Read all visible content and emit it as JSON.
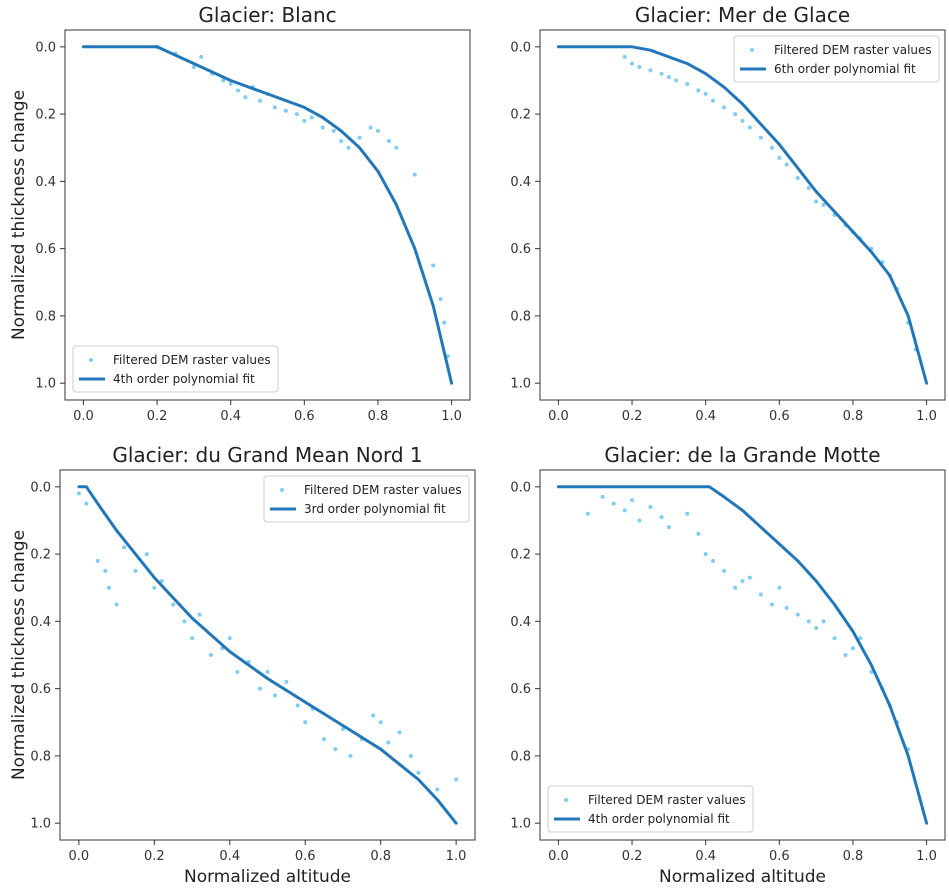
{
  "figure": {
    "ylabel": "Normalized thickness change",
    "xlabel": "Normalized altitude"
  },
  "colors": {
    "scatter": "#7fcdf2",
    "fit": "#2177b8",
    "frame": "#333333"
  },
  "legend": {
    "scatter_label": "Filtered DEM raster values"
  },
  "chart_data": [
    {
      "type": "scatter",
      "title": "Glacier: Blanc",
      "xlim": [
        -0.05,
        1.05
      ],
      "ylim": [
        1.05,
        -0.05
      ],
      "y_inverted": true,
      "xticks": [
        0.0,
        0.2,
        0.4,
        0.6,
        0.8,
        1.0
      ],
      "yticks": [
        0.0,
        0.2,
        0.4,
        0.6,
        0.8,
        1.0
      ],
      "legend_location": "lower-left",
      "fit": {
        "name": "4th order polynomial fit",
        "x": [
          0.0,
          0.2,
          0.3,
          0.4,
          0.5,
          0.6,
          0.65,
          0.7,
          0.75,
          0.8,
          0.85,
          0.9,
          0.95,
          1.0
        ],
        "y": [
          0.0,
          0.0,
          0.05,
          0.1,
          0.14,
          0.18,
          0.21,
          0.25,
          0.3,
          0.37,
          0.47,
          0.6,
          0.77,
          1.0
        ]
      },
      "scatter": [
        [
          0.2,
          0.0
        ],
        [
          0.25,
          0.02
        ],
        [
          0.3,
          0.06
        ],
        [
          0.32,
          0.03
        ],
        [
          0.35,
          0.08
        ],
        [
          0.38,
          0.1
        ],
        [
          0.4,
          0.11
        ],
        [
          0.42,
          0.13
        ],
        [
          0.44,
          0.15
        ],
        [
          0.46,
          0.12
        ],
        [
          0.48,
          0.16
        ],
        [
          0.5,
          0.14
        ],
        [
          0.52,
          0.18
        ],
        [
          0.55,
          0.19
        ],
        [
          0.58,
          0.2
        ],
        [
          0.6,
          0.22
        ],
        [
          0.62,
          0.21
        ],
        [
          0.65,
          0.24
        ],
        [
          0.68,
          0.25
        ],
        [
          0.7,
          0.28
        ],
        [
          0.72,
          0.3
        ],
        [
          0.75,
          0.27
        ],
        [
          0.78,
          0.24
        ],
        [
          0.8,
          0.25
        ],
        [
          0.83,
          0.28
        ],
        [
          0.85,
          0.3
        ],
        [
          0.9,
          0.38
        ],
        [
          0.95,
          0.65
        ],
        [
          0.97,
          0.75
        ],
        [
          0.98,
          0.82
        ],
        [
          0.99,
          0.92
        ]
      ]
    },
    {
      "type": "scatter",
      "title": "Glacier: Mer de Glace",
      "xlim": [
        -0.05,
        1.05
      ],
      "ylim": [
        1.05,
        -0.05
      ],
      "y_inverted": true,
      "xticks": [
        0.0,
        0.2,
        0.4,
        0.6,
        0.8,
        1.0
      ],
      "yticks": [
        0.0,
        0.2,
        0.4,
        0.6,
        0.8,
        1.0
      ],
      "legend_location": "upper-right",
      "fit": {
        "name": "6th order polynomial fit",
        "x": [
          0.0,
          0.2,
          0.25,
          0.3,
          0.35,
          0.4,
          0.45,
          0.5,
          0.55,
          0.6,
          0.65,
          0.7,
          0.75,
          0.8,
          0.85,
          0.9,
          0.95,
          1.0
        ],
        "y": [
          0.0,
          0.0,
          0.01,
          0.03,
          0.05,
          0.08,
          0.12,
          0.17,
          0.23,
          0.29,
          0.36,
          0.43,
          0.49,
          0.55,
          0.61,
          0.68,
          0.8,
          1.0
        ]
      },
      "scatter": [
        [
          0.18,
          0.03
        ],
        [
          0.2,
          0.05
        ],
        [
          0.22,
          0.06
        ],
        [
          0.25,
          0.07
        ],
        [
          0.28,
          0.08
        ],
        [
          0.3,
          0.09
        ],
        [
          0.32,
          0.1
        ],
        [
          0.35,
          0.11
        ],
        [
          0.38,
          0.13
        ],
        [
          0.4,
          0.14
        ],
        [
          0.42,
          0.16
        ],
        [
          0.45,
          0.18
        ],
        [
          0.48,
          0.2
        ],
        [
          0.5,
          0.22
        ],
        [
          0.52,
          0.24
        ],
        [
          0.55,
          0.27
        ],
        [
          0.58,
          0.3
        ],
        [
          0.6,
          0.33
        ],
        [
          0.62,
          0.35
        ],
        [
          0.65,
          0.39
        ],
        [
          0.68,
          0.42
        ],
        [
          0.7,
          0.46
        ],
        [
          0.72,
          0.47
        ],
        [
          0.75,
          0.5
        ],
        [
          0.78,
          0.53
        ],
        [
          0.8,
          0.55
        ],
        [
          0.82,
          0.57
        ],
        [
          0.85,
          0.6
        ],
        [
          0.88,
          0.64
        ],
        [
          0.9,
          0.68
        ],
        [
          0.92,
          0.72
        ],
        [
          0.95,
          0.82
        ],
        [
          0.97,
          0.9
        ]
      ]
    },
    {
      "type": "scatter",
      "title": "Glacier: du Grand Mean Nord 1",
      "xlim": [
        -0.05,
        1.05
      ],
      "ylim": [
        1.05,
        -0.05
      ],
      "y_inverted": true,
      "xticks": [
        0.0,
        0.2,
        0.4,
        0.6,
        0.8,
        1.0
      ],
      "yticks": [
        0.0,
        0.2,
        0.4,
        0.6,
        0.8,
        1.0
      ],
      "legend_location": "upper-right",
      "fit": {
        "name": "3rd order polynomial fit",
        "x": [
          0.0,
          0.02,
          0.05,
          0.1,
          0.15,
          0.2,
          0.3,
          0.4,
          0.5,
          0.6,
          0.7,
          0.8,
          0.9,
          0.95,
          1.0
        ],
        "y": [
          0.0,
          0.0,
          0.05,
          0.13,
          0.2,
          0.27,
          0.39,
          0.49,
          0.57,
          0.64,
          0.71,
          0.78,
          0.87,
          0.93,
          1.0
        ]
      },
      "scatter": [
        [
          0.0,
          0.02
        ],
        [
          0.02,
          0.05
        ],
        [
          0.05,
          0.22
        ],
        [
          0.07,
          0.25
        ],
        [
          0.08,
          0.3
        ],
        [
          0.1,
          0.35
        ],
        [
          0.12,
          0.18
        ],
        [
          0.15,
          0.25
        ],
        [
          0.18,
          0.2
        ],
        [
          0.2,
          0.3
        ],
        [
          0.22,
          0.28
        ],
        [
          0.25,
          0.35
        ],
        [
          0.28,
          0.4
        ],
        [
          0.3,
          0.45
        ],
        [
          0.32,
          0.38
        ],
        [
          0.35,
          0.5
        ],
        [
          0.38,
          0.48
        ],
        [
          0.4,
          0.45
        ],
        [
          0.42,
          0.55
        ],
        [
          0.45,
          0.52
        ],
        [
          0.48,
          0.6
        ],
        [
          0.5,
          0.55
        ],
        [
          0.52,
          0.62
        ],
        [
          0.55,
          0.58
        ],
        [
          0.58,
          0.65
        ],
        [
          0.6,
          0.7
        ],
        [
          0.62,
          0.66
        ],
        [
          0.65,
          0.75
        ],
        [
          0.68,
          0.78
        ],
        [
          0.7,
          0.72
        ],
        [
          0.72,
          0.8
        ],
        [
          0.75,
          0.75
        ],
        [
          0.78,
          0.68
        ],
        [
          0.8,
          0.7
        ],
        [
          0.82,
          0.76
        ],
        [
          0.85,
          0.73
        ],
        [
          0.88,
          0.8
        ],
        [
          0.9,
          0.85
        ],
        [
          0.95,
          0.9
        ],
        [
          1.0,
          0.87
        ]
      ]
    },
    {
      "type": "scatter",
      "title": "Glacier: de la Grande Motte",
      "xlim": [
        -0.05,
        1.05
      ],
      "ylim": [
        1.05,
        -0.05
      ],
      "y_inverted": true,
      "xticks": [
        0.0,
        0.2,
        0.4,
        0.6,
        0.8,
        1.0
      ],
      "yticks": [
        0.0,
        0.2,
        0.4,
        0.6,
        0.8,
        1.0
      ],
      "legend_location": "lower-left",
      "fit": {
        "name": "4th order polynomial fit",
        "x": [
          0.0,
          0.41,
          0.45,
          0.5,
          0.55,
          0.6,
          0.65,
          0.7,
          0.75,
          0.8,
          0.85,
          0.9,
          0.95,
          1.0
        ],
        "y": [
          0.0,
          0.0,
          0.03,
          0.07,
          0.12,
          0.17,
          0.22,
          0.28,
          0.35,
          0.43,
          0.53,
          0.65,
          0.8,
          1.0
        ]
      },
      "scatter": [
        [
          0.08,
          0.08
        ],
        [
          0.12,
          0.03
        ],
        [
          0.15,
          0.05
        ],
        [
          0.18,
          0.07
        ],
        [
          0.2,
          0.04
        ],
        [
          0.22,
          0.1
        ],
        [
          0.25,
          0.06
        ],
        [
          0.28,
          0.09
        ],
        [
          0.3,
          0.12
        ],
        [
          0.35,
          0.08
        ],
        [
          0.38,
          0.14
        ],
        [
          0.4,
          0.2
        ],
        [
          0.42,
          0.22
        ],
        [
          0.45,
          0.25
        ],
        [
          0.48,
          0.3
        ],
        [
          0.5,
          0.28
        ],
        [
          0.52,
          0.27
        ],
        [
          0.55,
          0.32
        ],
        [
          0.58,
          0.35
        ],
        [
          0.6,
          0.3
        ],
        [
          0.62,
          0.36
        ],
        [
          0.65,
          0.38
        ],
        [
          0.68,
          0.4
        ],
        [
          0.7,
          0.42
        ],
        [
          0.72,
          0.4
        ],
        [
          0.75,
          0.45
        ],
        [
          0.78,
          0.5
        ],
        [
          0.8,
          0.48
        ],
        [
          0.82,
          0.45
        ],
        [
          0.85,
          0.55
        ],
        [
          0.88,
          0.6
        ],
        [
          0.9,
          0.65
        ],
        [
          0.92,
          0.7
        ],
        [
          0.95,
          0.78
        ]
      ]
    }
  ]
}
